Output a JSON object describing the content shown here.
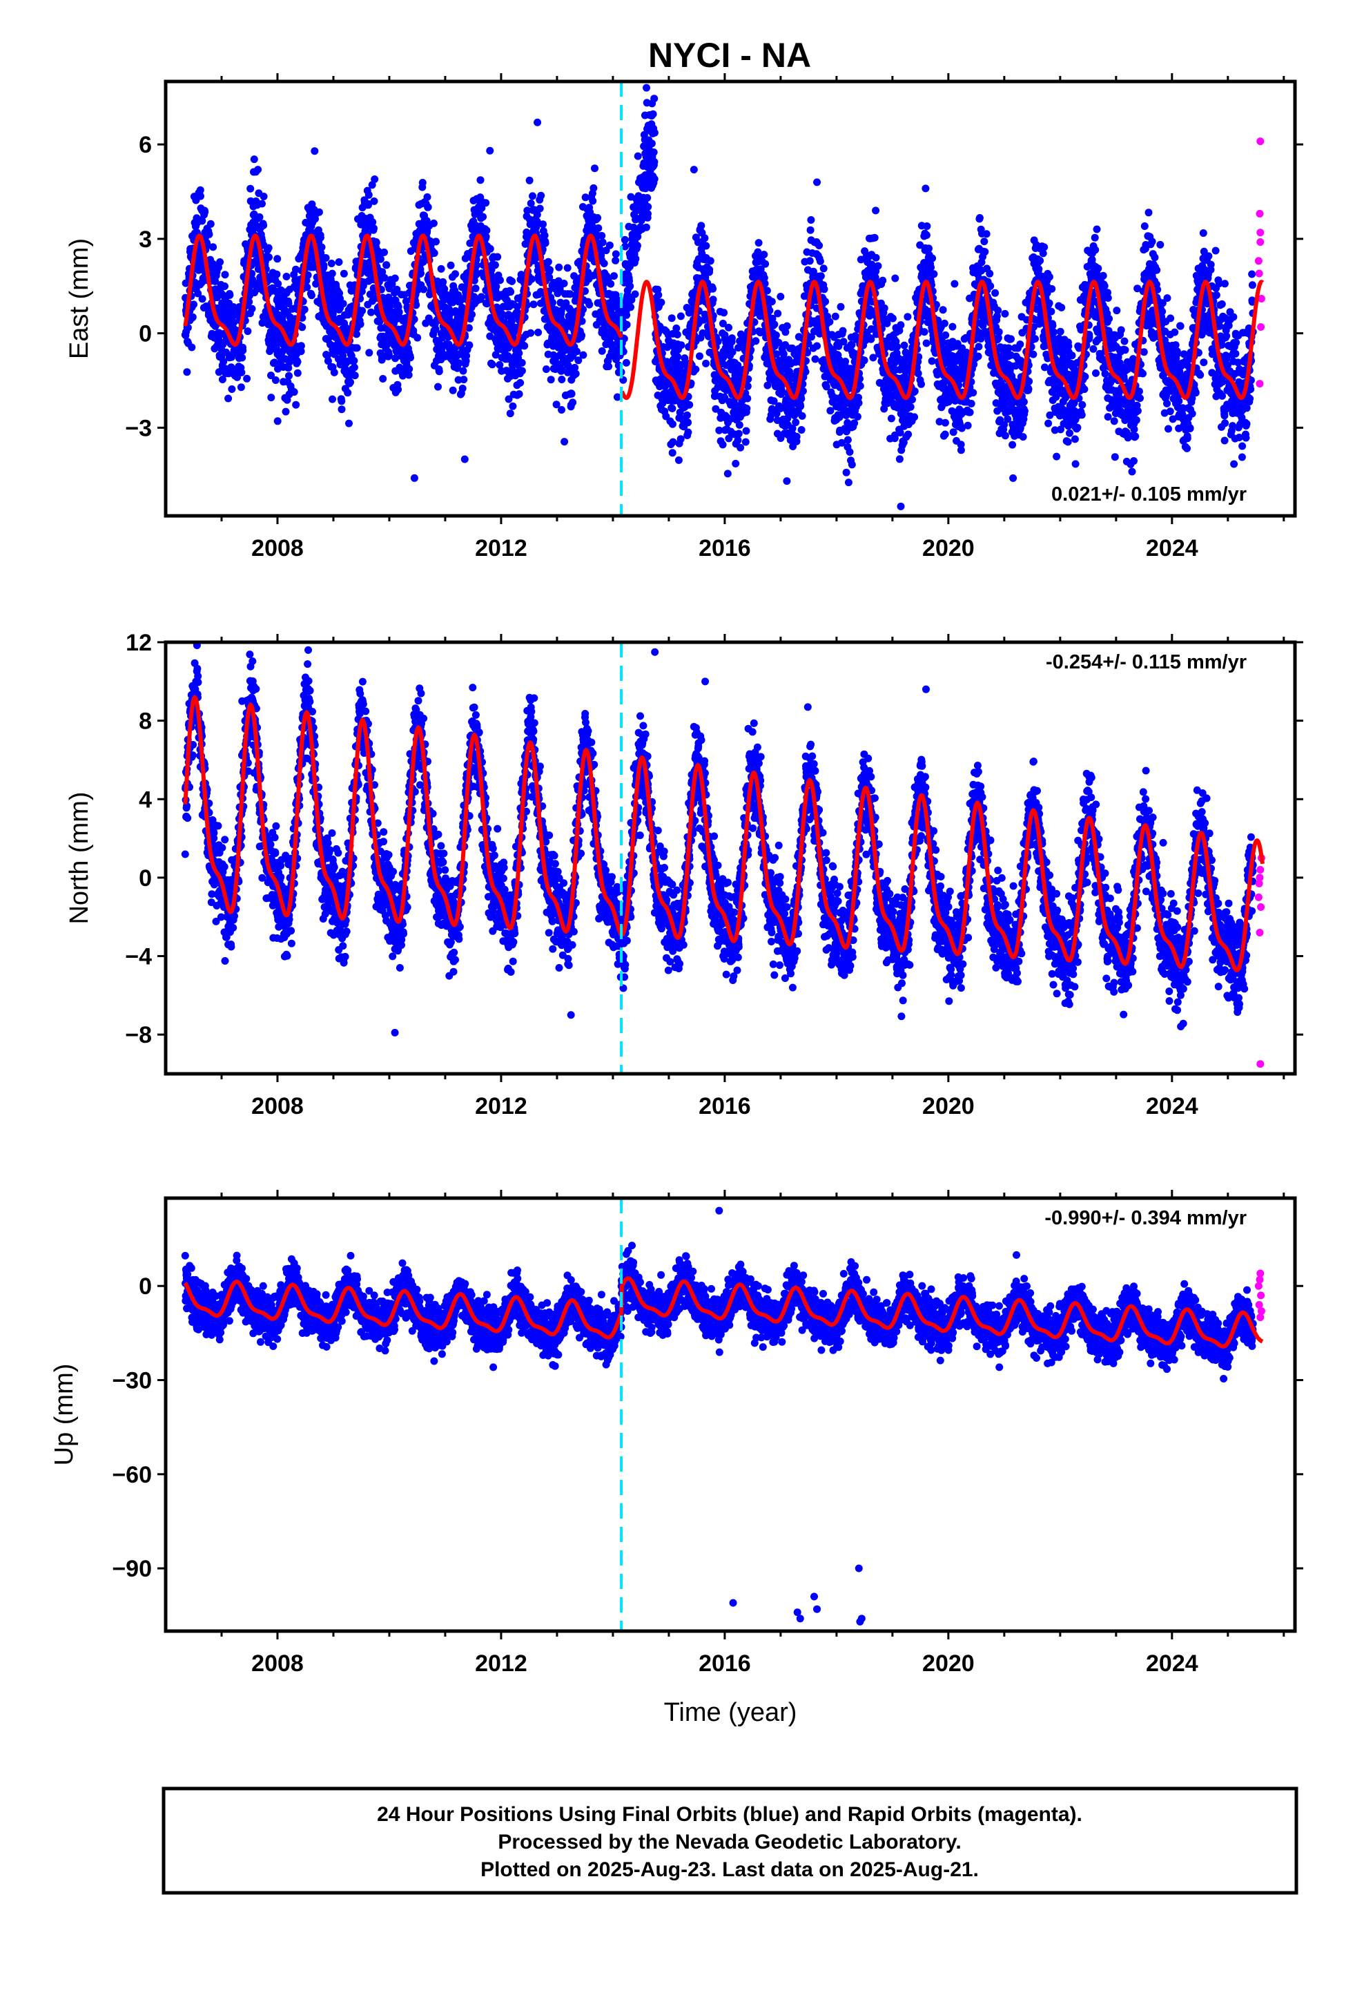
{
  "title": "NYCI - NA",
  "footer": {
    "lines": [
      "24 Hour Positions Using Final Orbits (blue) and Rapid Orbits (magenta).",
      "Processed by the Nevada Geodetic Laboratory.",
      "Plotted on 2025-Aug-23. Last data on 2025-Aug-21."
    ]
  },
  "colors": {
    "final_orbits": "#0000ff",
    "rapid_orbits": "#ff00ff",
    "model": "#ff0000",
    "event_line": "#00e5ff",
    "frame": "#000000"
  },
  "chart_data": [
    {
      "type": "scatter",
      "id": "east",
      "ylabel": "East (mm)",
      "xlabel": "",
      "xlim": [
        2006.0,
        2026.2
      ],
      "ylim": [
        -5.8,
        8.0
      ],
      "x_ticks": [
        2008,
        2012,
        2016,
        2020,
        2024
      ],
      "x_tick_labels": [
        "2008",
        "2012",
        "2016",
        "2020",
        "2024"
      ],
      "y_ticks": [
        -3,
        0,
        3,
        6
      ],
      "y_tick_labels": [
        "−3",
        "0",
        "3",
        "6"
      ],
      "rate_label": "0.021+/- 0.105 mm/yr",
      "rate_position": "bottom-right",
      "event_line_x": 2014.15,
      "data_start": 2006.35,
      "data_end": 2025.62,
      "rapid_start": 2025.45,
      "series": [
        {
          "offset": 1.05,
          "amplitude": 1.55,
          "phase_peak": 0.63,
          "spread": 0.9,
          "post_offset": -0.35,
          "slope": 0.0,
          "transient": {
            "start": 2014.15,
            "end": 2014.75,
            "from": 1.0,
            "to": 5.5
          },
          "model_post": {
            "mean": -0.35,
            "amplitude": 1.65
          }
        }
      ],
      "outliers": [
        {
          "x": 2010.45,
          "y": -4.6
        },
        {
          "x": 2011.35,
          "y": -4.0
        },
        {
          "x": 2011.8,
          "y": 5.8
        },
        {
          "x": 2012.65,
          "y": 6.7
        },
        {
          "x": 2007.65,
          "y": 5.2
        },
        {
          "x": 2015.45,
          "y": 5.2
        },
        {
          "x": 2017.65,
          "y": 4.8
        },
        {
          "x": 2018.7,
          "y": 3.9
        },
        {
          "x": 2019.15,
          "y": -5.5
        },
        {
          "x": 2014.6,
          "y": 7.8
        },
        {
          "x": 2014.7,
          "y": 7.3
        }
      ],
      "rapid_points": [
        {
          "x": 2025.58,
          "y": 6.1
        },
        {
          "x": 2025.57,
          "y": 3.8
        },
        {
          "x": 2025.58,
          "y": 2.9
        },
        {
          "x": 2025.56,
          "y": 1.9
        },
        {
          "x": 2025.59,
          "y": 0.2
        },
        {
          "x": 2025.57,
          "y": -1.6
        },
        {
          "x": 2025.55,
          "y": 2.3
        },
        {
          "x": 2025.6,
          "y": 1.1
        },
        {
          "x": 2025.58,
          "y": 3.2
        }
      ]
    },
    {
      "type": "scatter",
      "id": "north",
      "ylabel": "North (mm)",
      "xlabel": "",
      "xlim": [
        2006.0,
        2026.2
      ],
      "ylim": [
        -10.0,
        12.0
      ],
      "x_ticks": [
        2008,
        2012,
        2016,
        2020,
        2024
      ],
      "x_tick_labels": [
        "2008",
        "2012",
        "2016",
        "2020",
        "2024"
      ],
      "y_ticks": [
        -8,
        -4,
        0,
        4,
        8,
        12
      ],
      "y_tick_labels": [
        "−8",
        "−4",
        "0",
        "4",
        "8",
        "12"
      ],
      "rate_label": "-0.254+/- 0.115 mm/yr",
      "rate_position": "top-right",
      "event_line_x": 2014.15,
      "data_start": 2006.35,
      "data_end": 2025.62,
      "rapid_start": 2025.45,
      "series": [
        {
          "offset": 2.9,
          "amplitude": 4.9,
          "phase_peak": 0.55,
          "spread": 1.1,
          "post_offset": 0.0,
          "slope": -0.254,
          "amp_decay": 0.02
        }
      ],
      "outliers": [
        {
          "x": 2010.1,
          "y": -7.9
        },
        {
          "x": 2008.55,
          "y": 11.6
        },
        {
          "x": 2014.75,
          "y": 11.5
        },
        {
          "x": 2019.6,
          "y": 9.6
        },
        {
          "x": 2015.65,
          "y": 10.0
        },
        {
          "x": 2013.25,
          "y": -7.0
        }
      ],
      "rapid_points": [
        {
          "x": 2025.58,
          "y": -9.5
        },
        {
          "x": 2025.57,
          "y": -2.8
        },
        {
          "x": 2025.59,
          "y": -1.5
        },
        {
          "x": 2025.56,
          "y": -0.3
        },
        {
          "x": 2025.58,
          "y": 0.4
        },
        {
          "x": 2025.6,
          "y": 1.0
        },
        {
          "x": 2025.55,
          "y": -1.0
        },
        {
          "x": 2025.57,
          "y": 0.0
        }
      ]
    },
    {
      "type": "scatter",
      "id": "up",
      "ylabel": "Up (mm)",
      "xlabel": "Time (year)",
      "xlim": [
        2006.0,
        2026.2
      ],
      "ylim": [
        -110,
        28
      ],
      "x_ticks": [
        2008,
        2012,
        2016,
        2020,
        2024
      ],
      "x_tick_labels": [
        "2008",
        "2012",
        "2016",
        "2020",
        "2024"
      ],
      "y_ticks": [
        -90,
        -60,
        -30,
        0
      ],
      "y_tick_labels": [
        "−90",
        "−60",
        "−30",
        "0"
      ],
      "rate_label": "-0.990+/- 0.394 mm/yr",
      "rate_position": "top-right",
      "event_line_x": 2014.15,
      "data_start": 2006.35,
      "data_end": 2025.62,
      "rapid_start": 2025.45,
      "series": [
        {
          "offset": 2.0,
          "amplitude": 5.0,
          "phase_peak": 0.3,
          "spread": 3.5,
          "post_offset": 6.0,
          "slope": -0.99,
          "step": {
            "at": 2014.15,
            "size": 8.0
          }
        }
      ],
      "outliers": [
        {
          "x": 2016.15,
          "y": -101
        },
        {
          "x": 2017.3,
          "y": -104
        },
        {
          "x": 2017.35,
          "y": -106
        },
        {
          "x": 2017.6,
          "y": -99
        },
        {
          "x": 2017.65,
          "y": -103
        },
        {
          "x": 2018.4,
          "y": -90
        },
        {
          "x": 2018.45,
          "y": -106
        },
        {
          "x": 2018.42,
          "y": -107
        },
        {
          "x": 2015.9,
          "y": 24
        },
        {
          "x": 2014.05,
          "y": -17
        }
      ],
      "rapid_points": [
        {
          "x": 2025.58,
          "y": 4.0
        },
        {
          "x": 2025.57,
          "y": 2.0
        },
        {
          "x": 2025.59,
          "y": -3.0
        },
        {
          "x": 2025.56,
          "y": -6.0
        },
        {
          "x": 2025.58,
          "y": -10.0
        },
        {
          "x": 2025.6,
          "y": -8.0
        },
        {
          "x": 2025.55,
          "y": 0.0
        }
      ]
    }
  ]
}
